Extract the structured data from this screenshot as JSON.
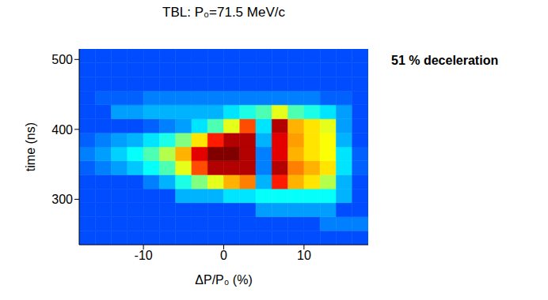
{
  "chart_data": {
    "type": "heatmap",
    "title": "TBL: P₀=71.5 MeV/c",
    "x_label": "ΔP/P₀ (%)",
    "y_label": "time (ns)",
    "annotation": "51 % deceleration",
    "xlim": [
      -18,
      18
    ],
    "xticks": [
      -10,
      0,
      10
    ],
    "ylim": [
      235,
      515
    ],
    "yticks": [
      300,
      400,
      500
    ],
    "grid": false,
    "x_edges": [
      -18,
      -16,
      -14,
      -12,
      -10,
      -8,
      -6,
      -4,
      -2,
      0,
      2,
      4,
      6,
      8,
      10,
      12,
      14,
      16,
      18
    ],
    "y_edges": [
      235,
      255,
      275,
      295,
      315,
      335,
      355,
      375,
      395,
      415,
      435,
      455,
      475,
      495,
      515
    ],
    "color_range": [
      0,
      1
    ],
    "cells": [
      [
        0.2,
        0.2,
        0.2,
        0.2,
        0.2,
        0.2,
        0.2,
        0.2,
        0.2,
        0.2,
        0.2,
        0.2,
        0.2,
        0.2,
        0.2,
        0.2,
        0.2,
        0.2
      ],
      [
        0.2,
        0.2,
        0.2,
        0.2,
        0.2,
        0.2,
        0.2,
        0.2,
        0.2,
        0.2,
        0.2,
        0.2,
        0.2,
        0.2,
        0.2,
        0.25,
        0.25,
        0.25
      ],
      [
        0.2,
        0.2,
        0.2,
        0.2,
        0.2,
        0.2,
        0.2,
        0.2,
        0.2,
        0.2,
        0.2,
        0.28,
        0.28,
        0.28,
        0.28,
        0.28,
        0.2,
        0.2
      ],
      [
        0.2,
        0.2,
        0.2,
        0.2,
        0.2,
        0.2,
        0.3,
        0.3,
        0.3,
        0.35,
        0.35,
        0.38,
        0.38,
        0.38,
        0.38,
        0.38,
        0.3,
        0.2
      ],
      [
        0.2,
        0.2,
        0.2,
        0.2,
        0.25,
        0.3,
        0.4,
        0.5,
        0.6,
        0.7,
        0.75,
        0.3,
        0.85,
        0.7,
        0.65,
        0.55,
        0.3,
        0.2
      ],
      [
        0.22,
        0.25,
        0.28,
        0.32,
        0.38,
        0.45,
        0.6,
        0.8,
        0.95,
        0.95,
        0.95,
        0.25,
        0.95,
        0.75,
        0.7,
        0.65,
        0.35,
        0.22
      ],
      [
        0.25,
        0.28,
        0.33,
        0.38,
        0.45,
        0.55,
        0.7,
        0.9,
        1,
        1,
        0.95,
        0.25,
        0.9,
        0.7,
        0.65,
        0.62,
        0.35,
        0.22
      ],
      [
        0.22,
        0.25,
        0.28,
        0.3,
        0.35,
        0.4,
        0.5,
        0.65,
        0.85,
        0.95,
        0.95,
        0.3,
        0.9,
        0.72,
        0.65,
        0.62,
        0.3,
        0.2
      ],
      [
        0.2,
        0.2,
        0.2,
        0.2,
        0.22,
        0.25,
        0.28,
        0.35,
        0.45,
        0.6,
        0.8,
        0.35,
        0.95,
        0.7,
        0.65,
        0.6,
        0.28,
        0.2
      ],
      [
        0.2,
        0.2,
        0.28,
        0.28,
        0.3,
        0.3,
        0.3,
        0.3,
        0.3,
        0.35,
        0.4,
        0.45,
        0.6,
        0.45,
        0.4,
        0.35,
        0.28,
        0.2
      ],
      [
        0.2,
        0.22,
        0.22,
        0.22,
        0.25,
        0.25,
        0.25,
        0.25,
        0.25,
        0.25,
        0.25,
        0.25,
        0.25,
        0.25,
        0.25,
        0.22,
        0.22,
        0.2
      ],
      [
        0.2,
        0.2,
        0.2,
        0.2,
        0.2,
        0.2,
        0.2,
        0.2,
        0.2,
        0.2,
        0.2,
        0.2,
        0.2,
        0.2,
        0.2,
        0.2,
        0.2,
        0.2
      ],
      [
        0.2,
        0.2,
        0.2,
        0.2,
        0.2,
        0.2,
        0.2,
        0.2,
        0.2,
        0.2,
        0.2,
        0.2,
        0.2,
        0.2,
        0.2,
        0.2,
        0.2,
        0.2
      ],
      [
        0.2,
        0.2,
        0.2,
        0.2,
        0.2,
        0.2,
        0.2,
        0.2,
        0.2,
        0.2,
        0.2,
        0.2,
        0.2,
        0.2,
        0.2,
        0.2,
        0.2,
        0.2
      ]
    ]
  }
}
